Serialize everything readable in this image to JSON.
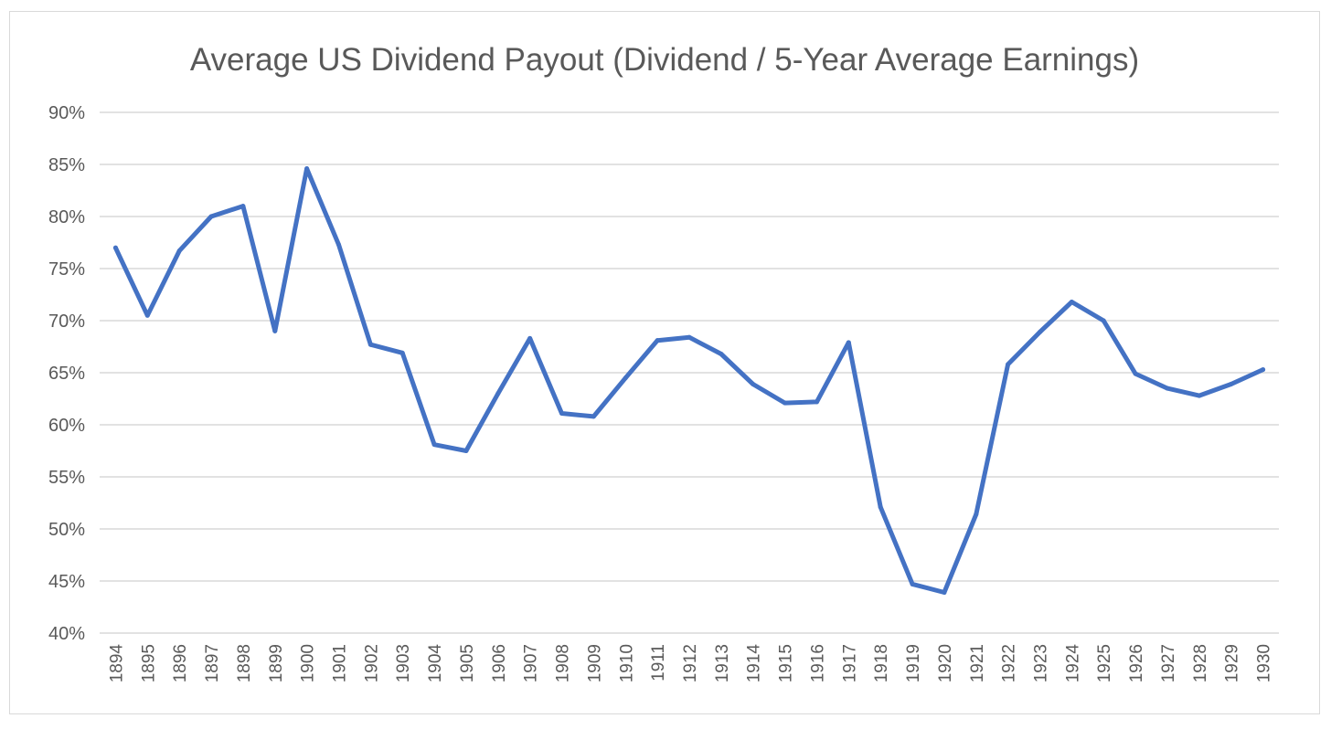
{
  "chart_data": {
    "type": "line",
    "title": "Average US Dividend Payout (Dividend / 5-Year Average Earnings)",
    "xlabel": "",
    "ylabel": "",
    "ylim": [
      0.4,
      0.9
    ],
    "y_ticks": [
      "40%",
      "45%",
      "50%",
      "55%",
      "60%",
      "65%",
      "70%",
      "75%",
      "80%",
      "85%",
      "90%"
    ],
    "y_tick_values": [
      0.4,
      0.45,
      0.5,
      0.55,
      0.6,
      0.65,
      0.7,
      0.75,
      0.8,
      0.85,
      0.9
    ],
    "grid": true,
    "legend": "none",
    "line_color": "#4472c4",
    "categories": [
      "1894",
      "1895",
      "1896",
      "1897",
      "1898",
      "1899",
      "1900",
      "1901",
      "1902",
      "1903",
      "1904",
      "1905",
      "1906",
      "1907",
      "1908",
      "1909",
      "1910",
      "1911",
      "1912",
      "1913",
      "1914",
      "1915",
      "1916",
      "1917",
      "1918",
      "1919",
      "1920",
      "1921",
      "1922",
      "1923",
      "1924",
      "1925",
      "1926",
      "1927",
      "1928",
      "1929",
      "1930"
    ],
    "series": [
      {
        "values": [
          0.77,
          0.705,
          0.767,
          0.8,
          0.81,
          0.69,
          0.846,
          0.773,
          0.677,
          0.669,
          0.581,
          0.575,
          0.63,
          0.683,
          0.611,
          0.608,
          0.645,
          0.681,
          0.684,
          0.668,
          0.639,
          0.621,
          0.622,
          0.679,
          0.521,
          0.447,
          0.439,
          0.514,
          0.658,
          0.689,
          0.718,
          0.7,
          0.649,
          0.635,
          0.628,
          0.639,
          0.653
        ]
      }
    ]
  }
}
